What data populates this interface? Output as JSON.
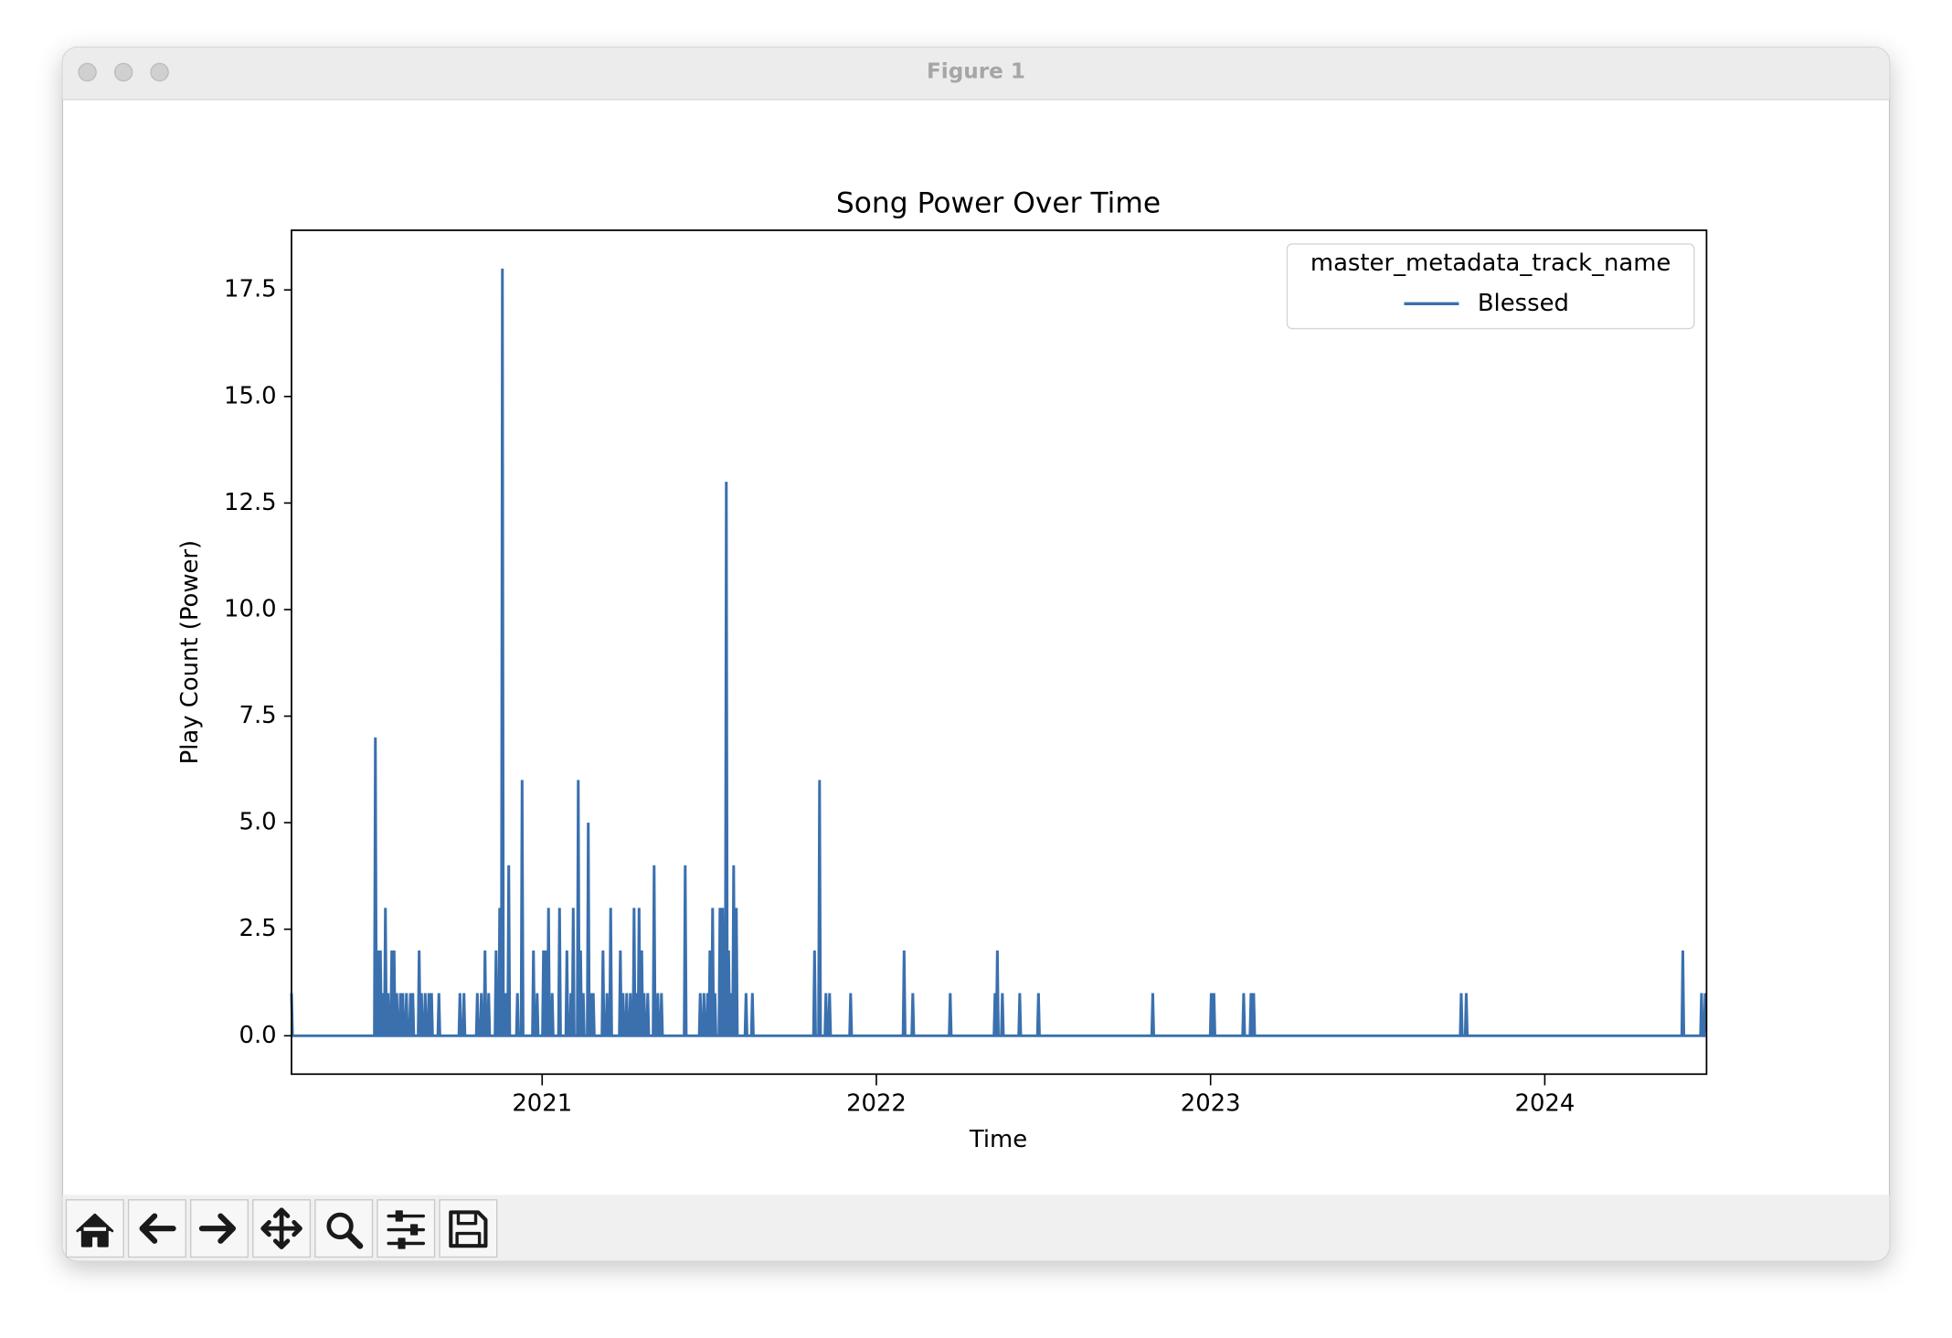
{
  "window": {
    "title": "Figure 1"
  },
  "chart_data": {
    "type": "line",
    "title": "Song Power Over Time",
    "xlabel": "Time",
    "ylabel": "Play Count (Power)",
    "legend_title": "master_metadata_track_name",
    "legend": "upper right",
    "xlim": [
      2020.25,
      2024.484
    ],
    "xticks": [
      2021,
      2022,
      2023,
      2024
    ],
    "ylim": [
      -0.9,
      18.9
    ],
    "yticks": [
      {
        "value": 0,
        "label": "0.0"
      },
      2.5,
      {
        "value": 5,
        "label": "5.0"
      },
      7.5,
      {
        "value": 10,
        "label": "10.0"
      },
      12.5,
      {
        "value": 15,
        "label": "15.0"
      },
      17.5
    ],
    "x": [
      2020.25,
      2020.253,
      2020.498,
      2020.501,
      2020.504,
      2020.506,
      2020.509,
      2020.512,
      2020.513,
      2020.516,
      2020.519,
      2020.521,
      2020.524,
      2020.527,
      2020.528,
      2020.531,
      2020.534,
      2020.536,
      2020.539,
      2020.542,
      2020.547,
      2020.55,
      2020.553,
      2020.554,
      2020.557,
      2020.56,
      2020.562,
      2020.565,
      2020.568,
      2020.573,
      2020.576,
      2020.579,
      2020.58,
      2020.583,
      2020.586,
      2020.591,
      2020.594,
      2020.597,
      2020.603,
      2020.606,
      2020.609,
      2020.61,
      2020.613,
      2020.616,
      2020.629,
      2020.632,
      2020.635,
      2020.636,
      2020.639,
      2020.642,
      2020.647,
      2020.65,
      2020.653,
      2020.658,
      2020.661,
      2020.664,
      2020.666,
      2020.669,
      2020.672,
      2020.688,
      2020.691,
      2020.694,
      2020.751,
      2020.754,
      2020.757,
      2020.763,
      2020.766,
      2020.769,
      2020.803,
      2020.806,
      2020.809,
      2020.815,
      2020.818,
      2020.821,
      2020.826,
      2020.829,
      2020.832,
      2020.837,
      2020.84,
      2020.843,
      2020.859,
      2020.862,
      2020.865,
      2020.87,
      2020.873,
      2020.876,
      2020.878,
      2020.881,
      2020.884,
      2020.889,
      2020.892,
      2020.895,
      2020.897,
      2020.9,
      2020.903,
      2020.923,
      2020.926,
      2020.929,
      2020.937,
      2020.94,
      2020.943,
      2020.971,
      2020.974,
      2020.977,
      2020.982,
      2020.985,
      2020.988,
      2021.001,
      2021.004,
      2021.007,
      2021.008,
      2021.011,
      2021.014,
      2021.016,
      2021.019,
      2021.022,
      2021.027,
      2021.03,
      2021.033,
      2021.049,
      2021.052,
      2021.055,
      2021.071,
      2021.074,
      2021.077,
      2021.083,
      2021.086,
      2021.089,
      2021.09,
      2021.093,
      2021.096,
      2021.105,
      2021.108,
      2021.111,
      2021.112,
      2021.115,
      2021.118,
      2021.12,
      2021.123,
      2021.126,
      2021.135,
      2021.138,
      2021.141,
      2021.142,
      2021.145,
      2021.148,
      2021.15,
      2021.153,
      2021.156,
      2021.179,
      2021.182,
      2021.185,
      2021.191,
      2021.194,
      2021.197,
      2021.202,
      2021.205,
      2021.208,
      2021.231,
      2021.234,
      2021.237,
      2021.239,
      2021.242,
      2021.245,
      2021.25,
      2021.253,
      2021.256,
      2021.261,
      2021.264,
      2021.267,
      2021.272,
      2021.275,
      2021.278,
      2021.28,
      2021.283,
      2021.286,
      2021.287,
      2021.29,
      2021.293,
      2021.295,
      2021.298,
      2021.301,
      2021.302,
      2021.305,
      2021.308,
      2021.313,
      2021.316,
      2021.319,
      2021.332,
      2021.335,
      2021.338,
      2021.343,
      2021.346,
      2021.349,
      2021.354,
      2021.357,
      2021.36,
      2021.425,
      2021.428,
      2021.431,
      2021.47,
      2021.473,
      2021.476,
      2021.481,
      2021.484,
      2021.487,
      2021.492,
      2021.495,
      2021.498,
      2021.499,
      2021.502,
      2021.505,
      2021.507,
      2021.51,
      2021.513,
      2021.514,
      2021.517,
      2021.52,
      2021.529,
      2021.532,
      2021.535,
      2021.537,
      2021.54,
      2021.543,
      2021.548,
      2021.551,
      2021.554,
      2021.555,
      2021.558,
      2021.561,
      2021.563,
      2021.566,
      2021.569,
      2021.57,
      2021.573,
      2021.576,
      2021.578,
      2021.581,
      2021.584,
      2021.607,
      2021.61,
      2021.613,
      2021.626,
      2021.629,
      2021.632,
      2021.812,
      2021.815,
      2021.818,
      2021.827,
      2021.83,
      2021.833,
      2021.846,
      2021.849,
      2021.852,
      2021.857,
      2021.86,
      2021.863,
      2021.92,
      2021.923,
      2021.926,
      2022.08,
      2022.083,
      2022.086,
      2022.106,
      2022.109,
      2022.112,
      2022.218,
      2022.221,
      2022.224,
      2022.352,
      2022.355,
      2022.358,
      2022.359,
      2022.362,
      2022.365,
      2022.374,
      2022.377,
      2022.38,
      2022.426,
      2022.429,
      2022.432,
      2022.482,
      2022.485,
      2022.488,
      2022.824,
      2022.827,
      2022.83,
      2022.999,
      2023.002,
      2023.005,
      2023.007,
      2023.01,
      2023.013,
      2023.096,
      2023.099,
      2023.102,
      2023.118,
      2023.121,
      2023.124,
      2023.126,
      2023.129,
      2023.132,
      2023.747,
      2023.75,
      2023.753,
      2023.762,
      2023.765,
      2023.768,
      2024.41,
      2024.413,
      2024.416,
      2024.466,
      2024.469,
      2024.472,
      2024.477,
      2024.48
    ],
    "series": [
      {
        "name": "Blessed",
        "color": "#3a70ae",
        "values": [
          1,
          0,
          0,
          7,
          0,
          0,
          2,
          0,
          0,
          2,
          0,
          0,
          1,
          0,
          0,
          3,
          0,
          0,
          1,
          0,
          0,
          2,
          0,
          0,
          2,
          0,
          0,
          1,
          0,
          0,
          1,
          0,
          0,
          1,
          0,
          0,
          1,
          0,
          0,
          1,
          0,
          0,
          1,
          0,
          0,
          2,
          0,
          0,
          1,
          0,
          0,
          1,
          0,
          0,
          1,
          0,
          0,
          1,
          0,
          0,
          1,
          0,
          0,
          1,
          0,
          0,
          1,
          0,
          0,
          1,
          0,
          0,
          1,
          0,
          0,
          2,
          0,
          0,
          1,
          0,
          0,
          2,
          0,
          0,
          3,
          0,
          0,
          18,
          0,
          0,
          1,
          0,
          0,
          4,
          0,
          0,
          1,
          0,
          0,
          6,
          0,
          0,
          2,
          0,
          0,
          1,
          0,
          0,
          2,
          0,
          0,
          2,
          0,
          0,
          3,
          0,
          0,
          1,
          0,
          0,
          3,
          0,
          0,
          2,
          0,
          0,
          1,
          0,
          0,
          3,
          0,
          0,
          6,
          0,
          0,
          2,
          0,
          0,
          1,
          0,
          0,
          5,
          0,
          0,
          1,
          0,
          0,
          1,
          0,
          0,
          2,
          0,
          0,
          1,
          0,
          0,
          3,
          0,
          0,
          2,
          0,
          0,
          1,
          0,
          0,
          1,
          0,
          0,
          1,
          0,
          0,
          3,
          0,
          0,
          1,
          0,
          0,
          3,
          0,
          0,
          2,
          0,
          0,
          1,
          0,
          0,
          1,
          0,
          0,
          4,
          0,
          0,
          1,
          0,
          0,
          1,
          0,
          0,
          4,
          0,
          0,
          1,
          0,
          0,
          1,
          0,
          0,
          1,
          0,
          0,
          2,
          0,
          0,
          3,
          0,
          0,
          1,
          0,
          0,
          3,
          0,
          0,
          3,
          0,
          0,
          13,
          0,
          0,
          2,
          0,
          0,
          1,
          0,
          0,
          4,
          0,
          0,
          3,
          0,
          0,
          1,
          0,
          0,
          1,
          0,
          0,
          2,
          0,
          0,
          6,
          0,
          0,
          1,
          0,
          0,
          1,
          0,
          0,
          1,
          0,
          0,
          2,
          0,
          0,
          1,
          0,
          0,
          1,
          0,
          0,
          1,
          0,
          0,
          2,
          0,
          0,
          1,
          0,
          0,
          1,
          0,
          0,
          1,
          0,
          0,
          1,
          0,
          0,
          1,
          0,
          0,
          1,
          0,
          0,
          1,
          0,
          0,
          1,
          0,
          0,
          1,
          0,
          0,
          1,
          0,
          0,
          1,
          0,
          0,
          2,
          0,
          0,
          1,
          0,
          0,
          1
        ]
      }
    ]
  }
}
